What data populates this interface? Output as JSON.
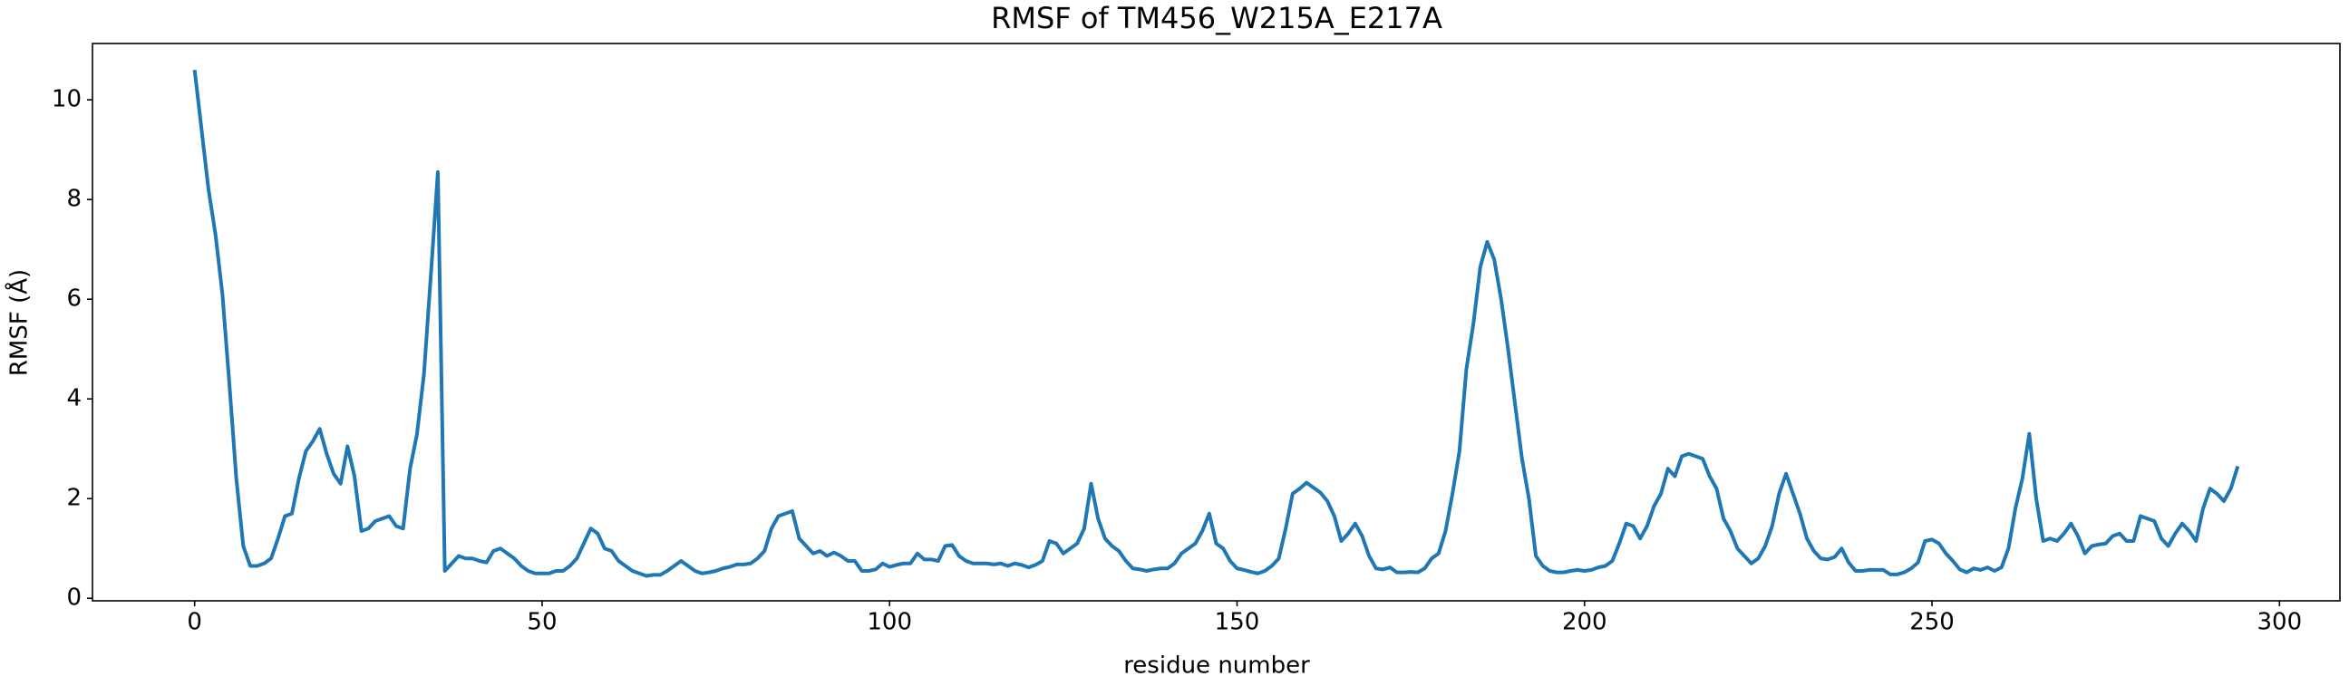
{
  "chart_data": {
    "type": "line",
    "title": "RMSF of TM456_W215A_E217A",
    "xlabel": "residue number",
    "ylabel": "RMSF (Å)",
    "color": "#1f77b4",
    "xlim": [
      -14.7,
      308.7
    ],
    "ylim": [
      -0.05,
      11.13
    ],
    "xticks": [
      0,
      50,
      100,
      150,
      200,
      250,
      300
    ],
    "yticks": [
      0,
      2,
      4,
      6,
      8,
      10
    ],
    "x": [
      0,
      1,
      2,
      3,
      4,
      5,
      6,
      7,
      8,
      9,
      10,
      11,
      12,
      13,
      14,
      15,
      16,
      17,
      18,
      19,
      20,
      21,
      22,
      23,
      24,
      25,
      26,
      27,
      28,
      29,
      30,
      31,
      32,
      33,
      34,
      35,
      36,
      37,
      38,
      39,
      40,
      41,
      42,
      43,
      44,
      45,
      46,
      47,
      48,
      49,
      50,
      51,
      52,
      53,
      54,
      55,
      56,
      57,
      58,
      59,
      60,
      61,
      62,
      63,
      64,
      65,
      66,
      67,
      68,
      69,
      70,
      71,
      72,
      73,
      74,
      75,
      76,
      77,
      78,
      79,
      80,
      81,
      82,
      83,
      84,
      85,
      86,
      87,
      88,
      89,
      90,
      91,
      92,
      93,
      94,
      95,
      96,
      97,
      98,
      99,
      100,
      101,
      102,
      103,
      104,
      105,
      106,
      107,
      108,
      109,
      110,
      111,
      112,
      113,
      114,
      115,
      116,
      117,
      118,
      119,
      120,
      121,
      122,
      123,
      124,
      125,
      126,
      127,
      128,
      129,
      130,
      131,
      132,
      133,
      134,
      135,
      136,
      137,
      138,
      139,
      140,
      141,
      142,
      143,
      144,
      145,
      146,
      147,
      148,
      149,
      150,
      151,
      152,
      153,
      154,
      155,
      156,
      157,
      158,
      159,
      160,
      161,
      162,
      163,
      164,
      165,
      166,
      167,
      168,
      169,
      170,
      171,
      172,
      173,
      174,
      175,
      176,
      177,
      178,
      179,
      180,
      181,
      182,
      183,
      184,
      185,
      186,
      187,
      188,
      189,
      190,
      191,
      192,
      193,
      194,
      195,
      196,
      197,
      198,
      199,
      200,
      201,
      202,
      203,
      204,
      205,
      206,
      207,
      208,
      209,
      210,
      211,
      212,
      213,
      214,
      215,
      216,
      217,
      218,
      219,
      220,
      221,
      222,
      223,
      224,
      225,
      226,
      227,
      228,
      229,
      230,
      231,
      232,
      233,
      234,
      235,
      236,
      237,
      238,
      239,
      240,
      241,
      242,
      243,
      244,
      245,
      246,
      247,
      248,
      249,
      250,
      251,
      252,
      253,
      254,
      255,
      256,
      257,
      258,
      259,
      260,
      261,
      262,
      263,
      264,
      265,
      266,
      267,
      268,
      269,
      270,
      271,
      272,
      273,
      274,
      275,
      276,
      277,
      278,
      279,
      280,
      281,
      282,
      283,
      284,
      285,
      286,
      287,
      288,
      289,
      290,
      291,
      292,
      293,
      294
    ],
    "values": [
      10.6,
      9.4,
      8.2,
      7.3,
      6.1,
      4.3,
      2.4,
      1.05,
      0.65,
      0.65,
      0.7,
      0.8,
      1.2,
      1.65,
      1.7,
      2.4,
      2.95,
      3.15,
      3.4,
      2.9,
      2.5,
      2.3,
      3.05,
      2.45,
      1.35,
      1.4,
      1.55,
      1.6,
      1.65,
      1.45,
      1.4,
      2.6,
      3.3,
      4.5,
      6.5,
      8.55,
      0.55,
      0.7,
      0.85,
      0.8,
      0.8,
      0.75,
      0.72,
      0.95,
      1.0,
      0.9,
      0.8,
      0.65,
      0.55,
      0.5,
      0.5,
      0.5,
      0.55,
      0.55,
      0.65,
      0.8,
      1.1,
      1.4,
      1.3,
      1.0,
      0.95,
      0.75,
      0.65,
      0.55,
      0.5,
      0.45,
      0.47,
      0.47,
      0.55,
      0.65,
      0.75,
      0.65,
      0.55,
      0.5,
      0.52,
      0.55,
      0.6,
      0.63,
      0.68,
      0.68,
      0.7,
      0.8,
      0.95,
      1.4,
      1.65,
      1.7,
      1.75,
      1.2,
      1.05,
      0.9,
      0.95,
      0.85,
      0.92,
      0.85,
      0.75,
      0.75,
      0.55,
      0.55,
      0.58,
      0.7,
      0.63,
      0.67,
      0.7,
      0.7,
      0.9,
      0.78,
      0.78,
      0.75,
      1.05,
      1.07,
      0.85,
      0.75,
      0.7,
      0.7,
      0.7,
      0.68,
      0.7,
      0.65,
      0.7,
      0.67,
      0.62,
      0.67,
      0.75,
      1.15,
      1.1,
      0.9,
      1.0,
      1.1,
      1.4,
      2.3,
      1.6,
      1.2,
      1.05,
      0.95,
      0.75,
      0.6,
      0.58,
      0.55,
      0.58,
      0.6,
      0.6,
      0.7,
      0.9,
      1.0,
      1.1,
      1.35,
      1.7,
      1.1,
      1.0,
      0.75,
      0.6,
      0.57,
      0.53,
      0.5,
      0.55,
      0.65,
      0.8,
      1.4,
      2.1,
      2.2,
      2.32,
      2.22,
      2.12,
      1.95,
      1.65,
      1.15,
      1.3,
      1.5,
      1.25,
      0.85,
      0.6,
      0.58,
      0.62,
      0.52,
      0.52,
      0.53,
      0.52,
      0.6,
      0.8,
      0.9,
      1.35,
      2.1,
      2.95,
      4.6,
      5.5,
      6.65,
      7.15,
      6.8,
      6.0,
      5.0,
      3.9,
      2.8,
      2.0,
      0.85,
      0.65,
      0.55,
      0.52,
      0.52,
      0.55,
      0.57,
      0.55,
      0.57,
      0.62,
      0.65,
      0.75,
      1.1,
      1.5,
      1.45,
      1.2,
      1.45,
      1.85,
      2.1,
      2.6,
      2.45,
      2.85,
      2.9,
      2.85,
      2.8,
      2.45,
      2.2,
      1.6,
      1.35,
      1.0,
      0.85,
      0.7,
      0.8,
      1.05,
      1.45,
      2.1,
      2.5,
      2.1,
      1.7,
      1.2,
      0.95,
      0.8,
      0.78,
      0.83,
      1.0,
      0.72,
      0.55,
      0.55,
      0.57,
      0.57,
      0.57,
      0.48,
      0.48,
      0.52,
      0.6,
      0.72,
      1.15,
      1.18,
      1.1,
      0.9,
      0.75,
      0.58,
      0.52,
      0.6,
      0.57,
      0.62,
      0.55,
      0.62,
      1.0,
      1.8,
      2.4,
      3.3,
      2.0,
      1.15,
      1.2,
      1.15,
      1.3,
      1.5,
      1.25,
      0.9,
      1.05,
      1.08,
      1.1,
      1.25,
      1.3,
      1.15,
      1.15,
      1.65,
      1.6,
      1.55,
      1.2,
      1.05,
      1.3,
      1.5,
      1.35,
      1.15,
      1.8,
      2.2,
      2.1,
      1.95,
      2.2,
      2.65
    ]
  }
}
